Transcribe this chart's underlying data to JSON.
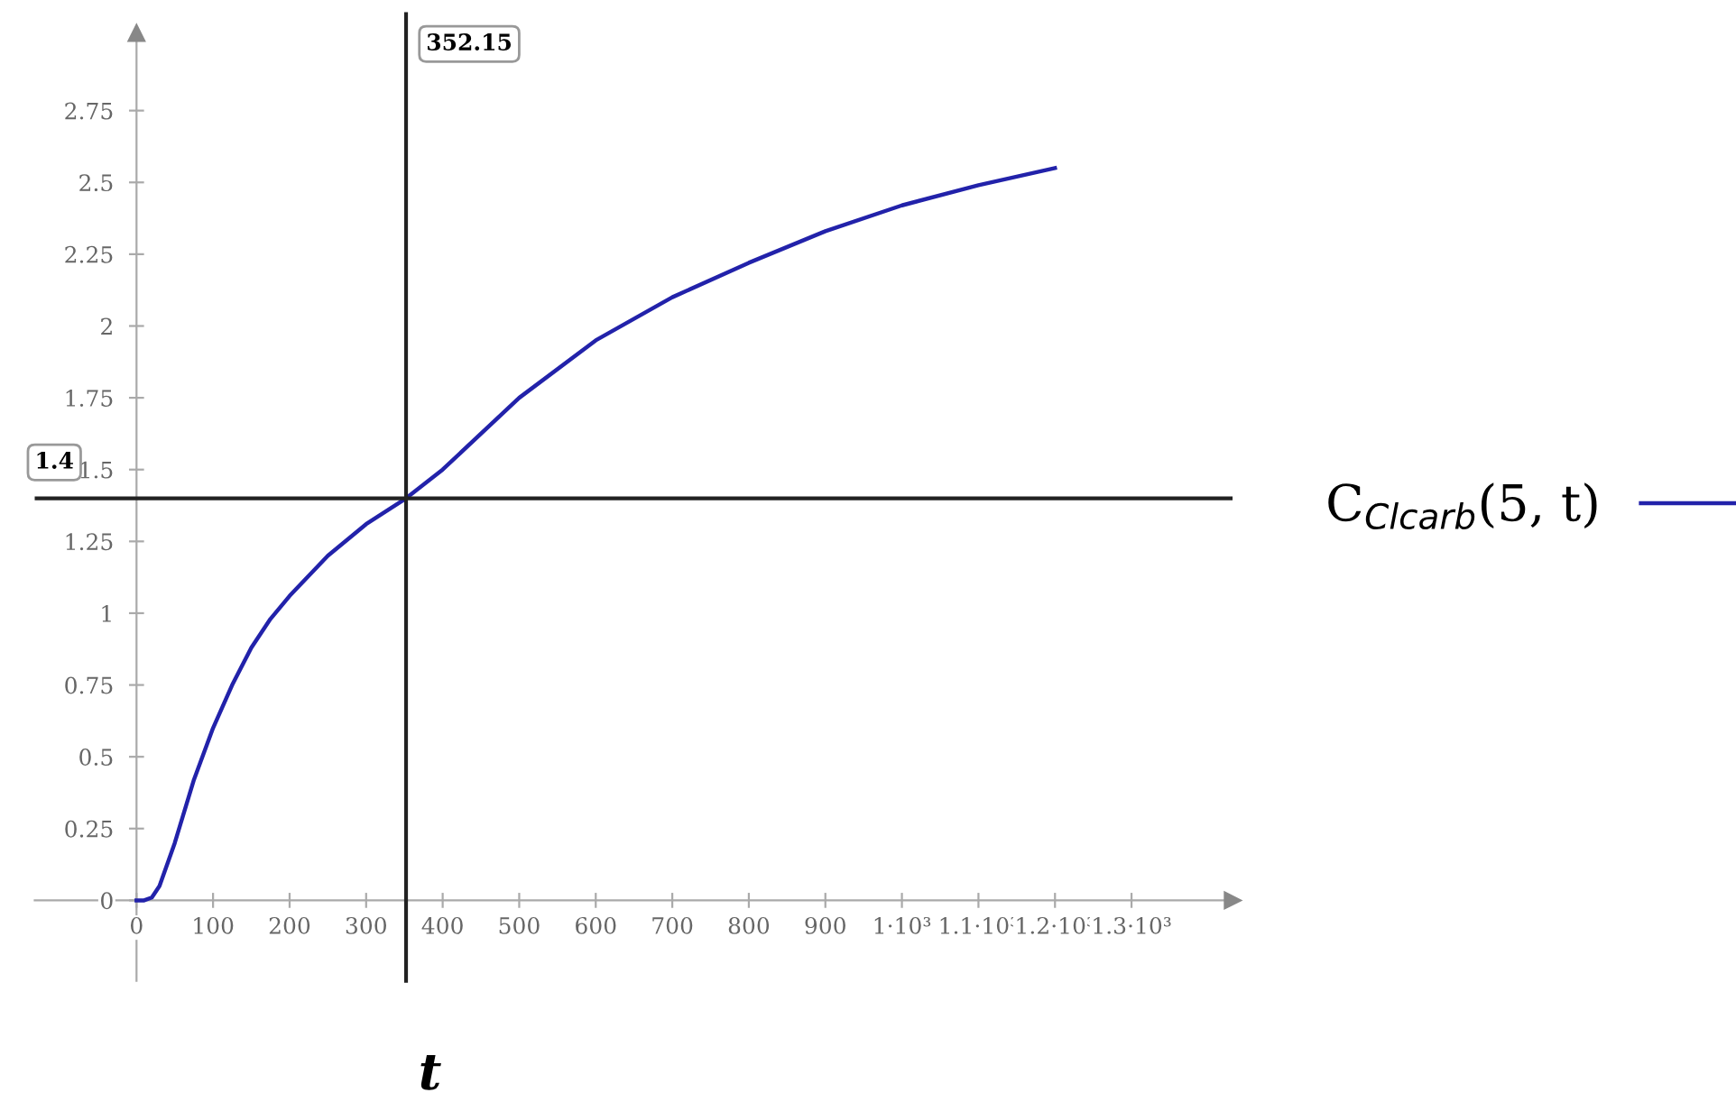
{
  "chart_data": {
    "type": "line",
    "xlabel": "t",
    "x": [
      0,
      10,
      20,
      30,
      50,
      75,
      100,
      125,
      150,
      175,
      200,
      250,
      300,
      352.15,
      400,
      500,
      600,
      700,
      800,
      900,
      1000,
      1100,
      1200
    ],
    "series": [
      {
        "name": "C$_{Clcarb}$(5, t)",
        "color": "#2222aa",
        "values": [
          0,
          0,
          0.01,
          0.05,
          0.2,
          0.42,
          0.6,
          0.75,
          0.88,
          0.98,
          1.06,
          1.2,
          1.31,
          1.4,
          1.5,
          1.75,
          1.95,
          2.1,
          2.22,
          2.33,
          2.42,
          2.49,
          2.55
        ]
      }
    ],
    "xlim": [
      -133,
      1432
    ],
    "ylim": [
      -0.28,
      3.02
    ],
    "xticks": [
      0,
      100,
      200,
      300,
      400,
      500,
      600,
      700,
      800,
      900,
      {
        "value": 1000,
        "label": "1·10³"
      },
      {
        "value": 1100,
        "label": "1.1·10³"
      },
      {
        "value": 1200,
        "label": "1.2·10³"
      },
      {
        "value": 1300,
        "label": "1.3·10³"
      }
    ],
    "yticks": [
      0,
      0.25,
      0.5,
      0.75,
      1,
      1.25,
      1.5,
      1.75,
      2,
      2.25,
      2.5,
      2.75
    ],
    "ref_lines": [
      {
        "axis": "x",
        "value": 352.15,
        "label": "352.15",
        "color": "#222222"
      },
      {
        "axis": "y",
        "value": 1.4,
        "label": "1.4",
        "color": "#222222"
      }
    ],
    "grid": false,
    "legend": "right"
  }
}
